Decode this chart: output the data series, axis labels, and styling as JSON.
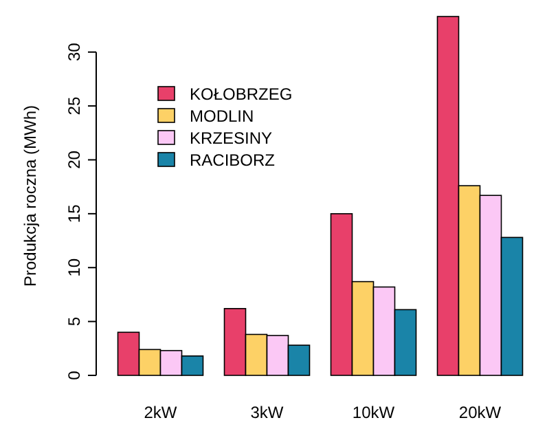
{
  "chart_data": {
    "type": "bar",
    "ylabel": "Produkcja roczna (MWh)",
    "categories": [
      "2kW",
      "3kW",
      "10kW",
      "20kW"
    ],
    "ylim": [
      0,
      33.3
    ],
    "yticks": [
      0,
      5,
      10,
      15,
      20,
      25,
      30
    ],
    "legend": "top left",
    "grid": false,
    "series": [
      {
        "name": "KOŁOBRZEG",
        "color": "#e8406a",
        "values": [
          4.0,
          6.2,
          15.0,
          33.3
        ]
      },
      {
        "name": "MODLIN",
        "color": "#fdd166",
        "values": [
          2.4,
          3.8,
          8.7,
          17.6
        ]
      },
      {
        "name": "KRZESINY",
        "color": "#fbc8f5",
        "values": [
          2.3,
          3.7,
          8.2,
          16.7
        ]
      },
      {
        "name": "RACIBORZ",
        "color": "#1a84a8",
        "values": [
          1.8,
          2.8,
          6.1,
          12.8
        ]
      }
    ]
  }
}
